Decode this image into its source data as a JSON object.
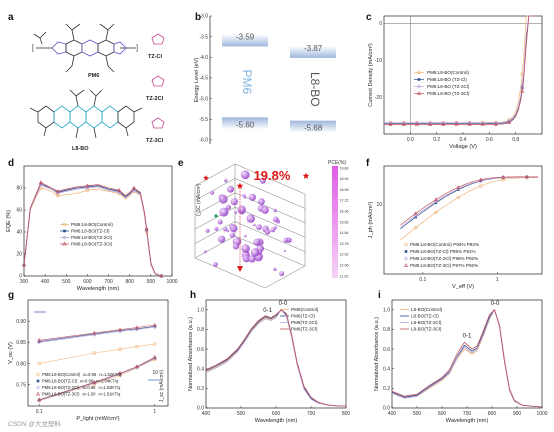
{
  "panels": {
    "a": "a",
    "b": "b",
    "c": "c",
    "d": "d",
    "e": "e",
    "f": "f",
    "g": "g",
    "h": "h",
    "i": "i"
  },
  "molecules": {
    "pm6": "PM6",
    "l8bo": "L8-BO",
    "tzcl": "TZ-Cl",
    "tz2cl": "TZ-2Cl",
    "tz3cl": "TZ-3Cl"
  },
  "watermark": "CSDN @大龙塑料",
  "colors": {
    "control": "#f2b77a",
    "tzcl": "#2d4d8e",
    "tz2cl": "#b7a6dc",
    "tz3cl": "#c2525e",
    "pm6_label": "#7fb0dc",
    "pce_red": "#e11818",
    "green_marker": "#2e9e4f",
    "cb_top": "#e05ce6",
    "cb_bottom": "#f6d3f8"
  },
  "chart_data": [
    {
      "panel": "b",
      "type": "bar",
      "ylabel": "Energy Level (eV)",
      "yticks": [
        "-3.0",
        "-3.5",
        "-4.0",
        "-4.5",
        "-5.0",
        "-5.5",
        "-6.0"
      ],
      "ylim": [
        -6.1,
        -3.0
      ],
      "levels": [
        {
          "material": "PM6",
          "lumo": -3.59,
          "homo": -5.6,
          "lumo_label": "-3.59",
          "homo_label": "-5.60"
        },
        {
          "material": "L8-BO",
          "lumo": -3.87,
          "homo": -5.68,
          "lumo_label": "-3.87",
          "homo_label": "-5.68"
        }
      ]
    },
    {
      "panel": "c",
      "type": "line",
      "xlabel": "Voltage (V)",
      "ylabel": "Current Density (mA/cm²)",
      "xlim": [
        -0.2,
        1.0
      ],
      "ylim": [
        -30,
        2
      ],
      "xticks": [
        "0.0",
        "0.2",
        "0.4",
        "0.6",
        "0.8"
      ],
      "yticks": [
        "0",
        "-10",
        "-20"
      ],
      "series": [
        {
          "name": "PM6:L8-BO(Control)",
          "key": "control",
          "jsc": 26.9,
          "voc": 0.875
        },
        {
          "name": "PM6:L8-BO (TZ-Cl)",
          "key": "tzcl",
          "jsc": 27.2,
          "voc": 0.886
        },
        {
          "name": "PM6:L8-BO (TZ-2Cl)",
          "key": "tz2cl",
          "jsc": 27.0,
          "voc": 0.884
        },
        {
          "name": "PM6:L8-BO (TZ-3Cl)",
          "key": "tz3cl",
          "jsc": 27.4,
          "voc": 0.889
        }
      ]
    },
    {
      "panel": "d",
      "type": "line",
      "xlabel": "Wavelength (nm)",
      "ylabel": "EQE (%)",
      "xlim": [
        300,
        1000
      ],
      "ylim": [
        0,
        100
      ],
      "xticks": [
        "300",
        "400",
        "500",
        "600",
        "700",
        "800",
        "900",
        "1000"
      ],
      "yticks": [
        "0",
        "20",
        "40",
        "60",
        "80"
      ],
      "x": [
        300,
        330,
        360,
        380,
        400,
        430,
        460,
        500,
        550,
        600,
        650,
        700,
        750,
        780,
        800,
        820,
        850,
        870,
        880,
        900,
        920,
        950
      ],
      "series": [
        {
          "name": "PM6:L8-BO(Control)",
          "key": "control",
          "values": [
            10,
            60,
            73,
            80,
            79,
            77,
            73,
            74,
            75,
            78,
            79,
            77,
            75,
            70,
            73,
            77,
            73,
            55,
            40,
            10,
            2,
            0
          ]
        },
        {
          "name": "PM6:L8-BO(TZ-Cl)",
          "key": "tzcl",
          "values": [
            10,
            61,
            75,
            84,
            82,
            79,
            76,
            78,
            80,
            81,
            82,
            79,
            77,
            72,
            75,
            79,
            75,
            57,
            42,
            11,
            2,
            0
          ]
        },
        {
          "name": "PM6:L8-BO(TZ-2Cl)",
          "key": "tz2cl",
          "values": [
            10,
            61,
            74,
            83,
            81,
            79,
            75,
            77,
            79,
            80,
            81,
            78,
            76,
            71,
            74,
            78,
            74,
            56,
            41,
            11,
            2,
            0
          ]
        },
        {
          "name": "PM6:L8-BO(TZ-3Cl)",
          "key": "tz3cl",
          "values": [
            10,
            62,
            76,
            85,
            83,
            80,
            77,
            79,
            81,
            82,
            83,
            80,
            78,
            73,
            76,
            80,
            76,
            58,
            43,
            12,
            2,
            0
          ]
        }
      ]
    },
    {
      "panel": "e",
      "type": "scatter",
      "annotation": "19.8%",
      "zlabel": "I_SC (mA/cm²)",
      "colorbar_label": "PCE(%)",
      "colorbar_ticks": [
        "19.80",
        "18.94",
        "18.08",
        "17.22",
        "16.36",
        "15.50",
        "14.64",
        "13.78",
        "12.92",
        "12.06",
        "11.20"
      ]
    },
    {
      "panel": "f",
      "type": "line",
      "xlabel": "V_eff (V)",
      "ylabel": "J_ph (mA/cm²)",
      "xlog": true,
      "ylog": true,
      "xticks": [
        "0.1",
        "1"
      ],
      "yticks": [
        "10"
      ],
      "series": [
        {
          "name": "PM6:L8-BO(Control)",
          "key": "control",
          "pdiss": "93%",
          "pcoll": "82%"
        },
        {
          "name": "PM6:L8-BO(TZ-Cl)",
          "key": "tzcl",
          "pdiss": "95%",
          "pcoll": "91%"
        },
        {
          "name": "PM6:L8-BO(TZ-2Cl)",
          "key": "tz2cl",
          "pdiss": "96%",
          "pcoll": "92%"
        },
        {
          "name": "PM6:L8-BO(TZ-3Cl)",
          "key": "tz3cl",
          "pdiss": "97%",
          "pcoll": "92%"
        }
      ]
    },
    {
      "panel": "g",
      "type": "scatter",
      "xlabel": "P_light (mW/cm²)",
      "ylabel": "V_oc (V)",
      "xlog": true,
      "xlim": [
        0.1,
        1
      ],
      "ylim": [
        0.7,
        0.95
      ],
      "xticks": [
        "0.1",
        "1"
      ],
      "yticks": [
        "0.75",
        "0.80",
        "0.85",
        "0.90"
      ],
      "right_ylabel": "J_sc (mA/cm²)",
      "right_ytick": "10",
      "x": [
        0.1,
        0.3,
        0.5,
        0.7,
        1.0
      ],
      "voc_series": [
        {
          "key": "control",
          "values": [
            0.8,
            0.825,
            0.834,
            0.84,
            0.846
          ]
        },
        {
          "key": "tzcl",
          "values": [
            0.852,
            0.87,
            0.878,
            0.882,
            0.888
          ]
        },
        {
          "key": "tz2cl",
          "values": [
            0.85,
            0.868,
            0.876,
            0.88,
            0.886
          ]
        },
        {
          "key": "tz3cl",
          "values": [
            0.855,
            0.872,
            0.88,
            0.885,
            0.891
          ]
        }
      ],
      "jsc_series": [
        {
          "key": "control",
          "values": [
            0.712,
            0.752,
            0.772,
            0.79,
            0.81
          ]
        },
        {
          "key": "tzcl",
          "values": [
            0.714,
            0.755,
            0.776,
            0.792,
            0.813
          ]
        },
        {
          "key": "tz2cl",
          "values": [
            0.713,
            0.754,
            0.775,
            0.791,
            0.812
          ]
        },
        {
          "key": "tz3cl",
          "values": [
            0.715,
            0.756,
            0.777,
            0.793,
            0.815
          ]
        }
      ],
      "series": [
        {
          "name": "PM6:L8-BO(Control)",
          "key": "control",
          "alpha": "α=0.98",
          "n": "n=1.52KT/q"
        },
        {
          "name": "PM6:L8-BO(TZ-Cl)",
          "key": "tzcl",
          "alpha": "α=0.98",
          "n": "n=1.04KT/q"
        },
        {
          "name": "PM6:L8-BO(TZ-2Cl)",
          "key": "tz2cl",
          "alpha": "α=0.98",
          "n": "n=1.03KT/q"
        },
        {
          "name": "PM6:L8-BO(TZ-3Cl)",
          "key": "tz3cl",
          "alpha": "α=1.00",
          "n": "n=1.01KT/q"
        }
      ]
    },
    {
      "panel": "h",
      "type": "line",
      "xlabel": "Wavelength (nm)",
      "ylabel": "Normalized Absorbance (a.u.)",
      "xlim": [
        400,
        800
      ],
      "ylim": [
        0,
        1.1
      ],
      "xticks": [
        "400",
        "500",
        "600",
        "700",
        "800"
      ],
      "yticks": [
        "0.0",
        "0.2",
        "0.4",
        "0.6",
        "0.8",
        "1.0"
      ],
      "peaks": [
        "0-1",
        "0-0"
      ],
      "x": [
        400,
        430,
        460,
        490,
        510,
        530,
        550,
        570,
        585,
        600,
        615,
        630,
        645,
        660,
        680,
        700,
        720,
        750,
        780,
        800
      ],
      "series": [
        {
          "name": "PM6(Control)",
          "key": "control",
          "values": [
            0.37,
            0.42,
            0.48,
            0.58,
            0.68,
            0.79,
            0.87,
            0.92,
            0.9,
            0.93,
            1.0,
            0.94,
            0.72,
            0.45,
            0.2,
            0.1,
            0.05,
            0.03,
            0.02,
            0.02
          ]
        },
        {
          "name": "PM6(TZ-Cl)",
          "key": "tzcl",
          "values": [
            0.38,
            0.43,
            0.49,
            0.59,
            0.69,
            0.8,
            0.88,
            0.93,
            0.91,
            0.94,
            1.0,
            0.95,
            0.73,
            0.46,
            0.21,
            0.1,
            0.05,
            0.03,
            0.02,
            0.02
          ]
        },
        {
          "name": "PM6(TZ-2Cl)",
          "key": "tz2cl",
          "values": [
            0.36,
            0.41,
            0.47,
            0.57,
            0.67,
            0.78,
            0.86,
            0.91,
            0.89,
            0.92,
            1.0,
            0.93,
            0.71,
            0.44,
            0.19,
            0.09,
            0.05,
            0.03,
            0.02,
            0.02
          ]
        },
        {
          "name": "PM6(TZ-3Cl)",
          "key": "tz3cl",
          "values": [
            0.39,
            0.44,
            0.5,
            0.6,
            0.7,
            0.81,
            0.89,
            0.94,
            0.92,
            0.95,
            1.0,
            0.96,
            0.74,
            0.47,
            0.22,
            0.11,
            0.06,
            0.03,
            0.02,
            0.02
          ]
        }
      ]
    },
    {
      "panel": "i",
      "type": "line",
      "xlabel": "Wavelength (nm)",
      "ylabel": "Normalized Absorbance (a.u.)",
      "xlim": [
        400,
        1000
      ],
      "ylim": [
        0,
        1.1
      ],
      "xticks": [
        "400",
        "500",
        "600",
        "700",
        "800",
        "900",
        "1000"
      ],
      "yticks": [
        "0.0",
        "0.2",
        "0.4",
        "0.6",
        "0.8",
        "1.0"
      ],
      "peaks": [
        "0-1",
        "0-0"
      ],
      "x": [
        400,
        450,
        500,
        550,
        600,
        630,
        660,
        690,
        720,
        740,
        760,
        790,
        810,
        830,
        850,
        870,
        890,
        920,
        950,
        1000
      ],
      "series": [
        {
          "name": "L8-BO(Control)",
          "key": "control",
          "values": [
            0.15,
            0.1,
            0.12,
            0.2,
            0.28,
            0.35,
            0.5,
            0.6,
            0.55,
            0.58,
            0.7,
            0.9,
            1.0,
            0.85,
            0.5,
            0.2,
            0.08,
            0.03,
            0.02,
            0.01
          ]
        },
        {
          "name": "L8-BO(TZ-Cl)",
          "key": "tzcl",
          "values": [
            0.16,
            0.11,
            0.13,
            0.22,
            0.3,
            0.37,
            0.52,
            0.64,
            0.58,
            0.61,
            0.73,
            0.93,
            1.0,
            0.84,
            0.48,
            0.19,
            0.07,
            0.03,
            0.02,
            0.01
          ]
        },
        {
          "name": "L8-BO(TZ-2Cl)",
          "key": "tz2cl",
          "values": [
            0.15,
            0.1,
            0.12,
            0.21,
            0.29,
            0.36,
            0.51,
            0.62,
            0.56,
            0.6,
            0.71,
            0.91,
            1.0,
            0.85,
            0.49,
            0.2,
            0.08,
            0.03,
            0.02,
            0.01
          ]
        },
        {
          "name": "L8-BO(TZ-3Cl)",
          "key": "tz3cl",
          "values": [
            0.17,
            0.12,
            0.14,
            0.23,
            0.31,
            0.39,
            0.55,
            0.67,
            0.6,
            0.63,
            0.75,
            0.95,
            1.0,
            0.83,
            0.47,
            0.18,
            0.07,
            0.03,
            0.02,
            0.01
          ]
        }
      ]
    }
  ]
}
